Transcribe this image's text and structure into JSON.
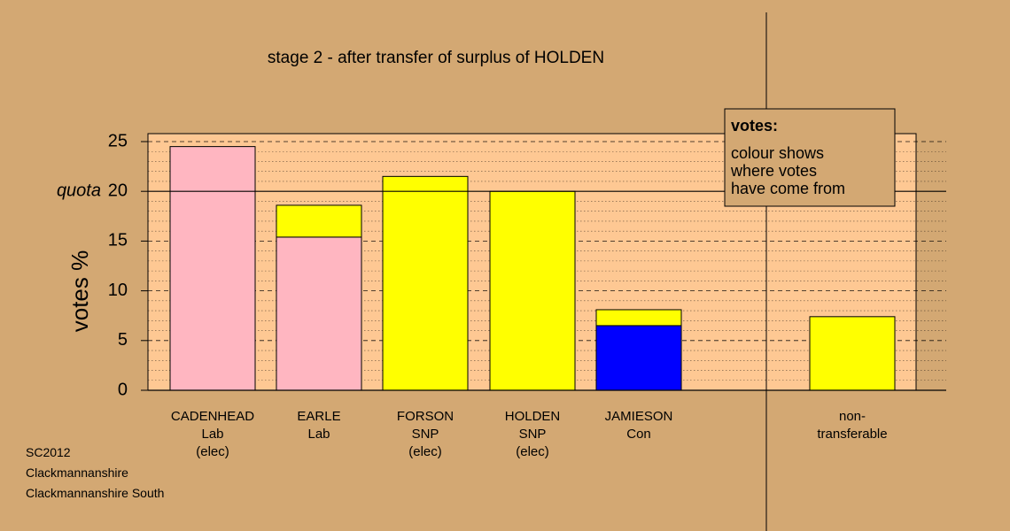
{
  "chart_data": {
    "type": "bar",
    "stacked": true,
    "title": "stage 2 - after transfer of surplus of HOLDEN",
    "ylabel": "votes %",
    "ylim": [
      0,
      25.7
    ],
    "yticks": [
      0,
      5,
      10,
      15,
      20,
      25
    ],
    "quota": 20,
    "quota_label": "quota",
    "grid": "minor dotted every 1, major dashed every 5",
    "categories": [
      [
        "CADENHEAD",
        "Lab",
        "(elec)"
      ],
      [
        "EARLE",
        "Lab"
      ],
      [
        "FORSON",
        "SNP",
        "(elec)"
      ],
      [
        "HOLDEN",
        "SNP",
        "(elec)"
      ],
      [
        "JAMIESON",
        "Con"
      ],
      [
        "non-",
        "transferable"
      ]
    ],
    "series": [
      {
        "color": "#ffb6c1",
        "values": [
          24.5,
          15.4,
          0,
          0,
          0,
          0
        ]
      },
      {
        "color": "#0000ff",
        "values": [
          0,
          0,
          0,
          0,
          6.5,
          0
        ]
      },
      {
        "color": "#ffff00",
        "values": [
          0,
          3.2,
          21.5,
          20.0,
          1.6,
          7.4
        ]
      }
    ],
    "legend": {
      "position": "top-right",
      "title": "votes:",
      "lines": [
        "colour shows",
        "where votes",
        "have come from"
      ]
    }
  },
  "footer": {
    "line1": "SC2012",
    "line2": "Clackmannanshire",
    "line3": "Clackmannanshire South"
  }
}
